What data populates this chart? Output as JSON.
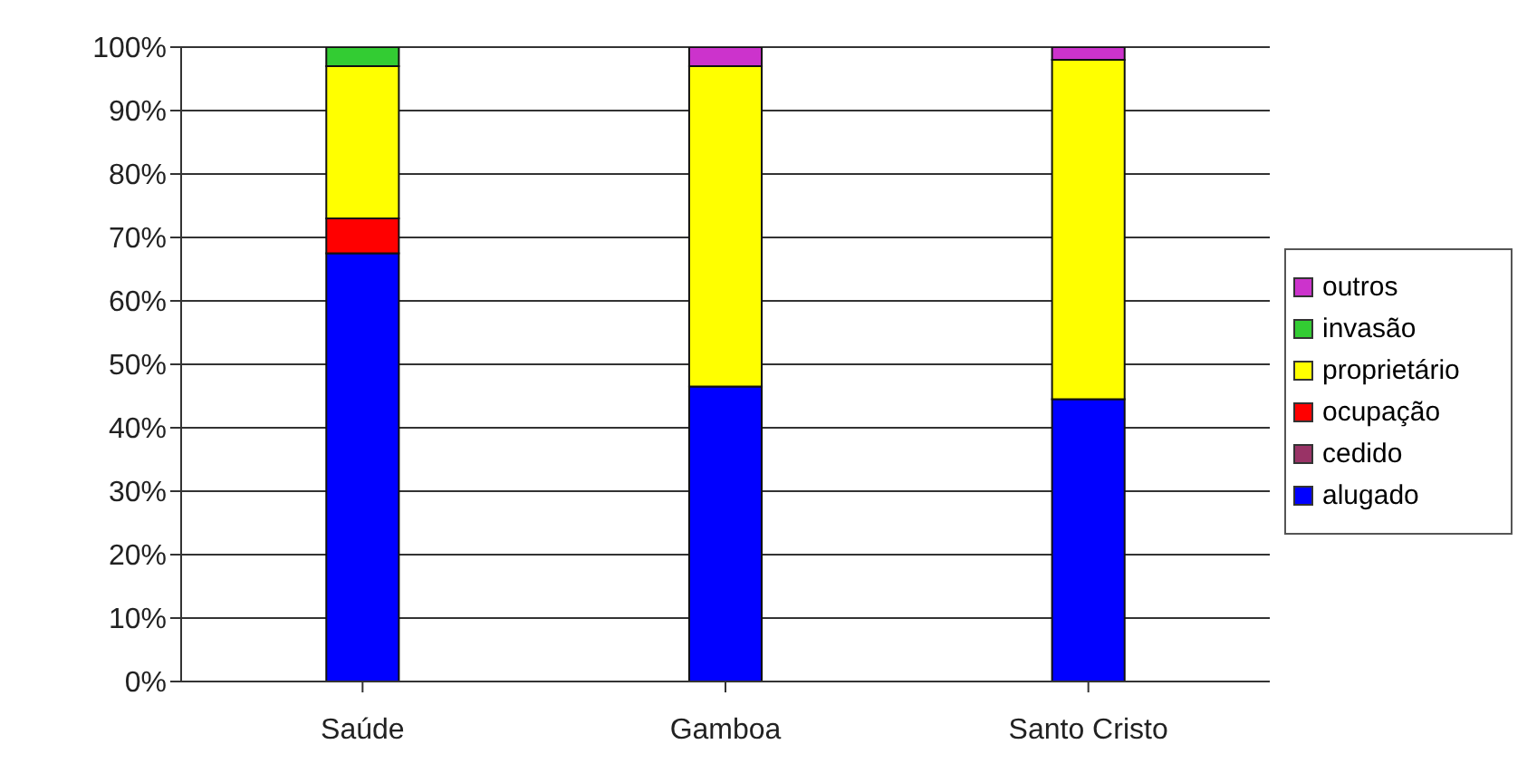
{
  "chart_data": {
    "type": "bar",
    "stacked": true,
    "categories": [
      "Saúde",
      "Gamboa",
      "Santo Cristo"
    ],
    "series": [
      {
        "name": "alugado",
        "color": "#0000ff",
        "values": [
          67.5,
          46.5,
          44.5
        ]
      },
      {
        "name": "cedido",
        "color": "#993366",
        "values": [
          0,
          0,
          0
        ]
      },
      {
        "name": "ocupação",
        "color": "#ff0000",
        "values": [
          5.5,
          0,
          0
        ]
      },
      {
        "name": "proprietário",
        "color": "#ffff00",
        "values": [
          24,
          50.5,
          53.5
        ]
      },
      {
        "name": "invasão",
        "color": "#33cc33",
        "values": [
          3,
          0,
          0
        ]
      },
      {
        "name": "outros",
        "color": "#cc33cc",
        "values": [
          0,
          3,
          2
        ]
      }
    ],
    "ylim": [
      0,
      100
    ],
    "yticks": [
      {
        "value": 0,
        "label": "0%"
      },
      {
        "value": 10,
        "label": "10%"
      },
      {
        "value": 20,
        "label": "20%"
      },
      {
        "value": 30,
        "label": "30%"
      },
      {
        "value": 40,
        "label": "40%"
      },
      {
        "value": 50,
        "label": "50%"
      },
      {
        "value": 60,
        "label": "60%"
      },
      {
        "value": 70,
        "label": "70%"
      },
      {
        "value": 80,
        "label": "80%"
      },
      {
        "value": 90,
        "label": "90%"
      },
      {
        "value": 100,
        "label": "100%"
      }
    ],
    "grid": "y",
    "legend": "right"
  }
}
